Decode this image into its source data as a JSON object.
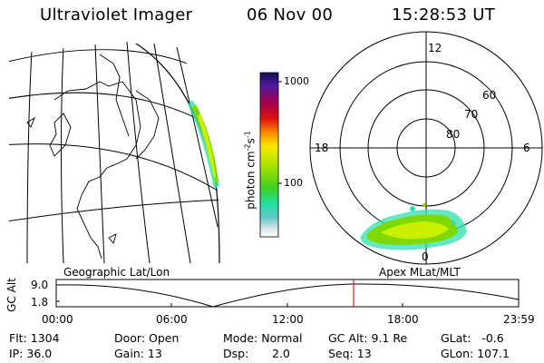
{
  "header": {
    "instrument": "Ultraviolet Imager",
    "date": "06 Nov 00",
    "time": "15:28:53 UT"
  },
  "colorbar": {
    "unit_label": "photon cm",
    "unit_exp1": "-2",
    "unit_s": "s",
    "unit_exp2": "-1",
    "ticks": [
      "1000",
      "100"
    ]
  },
  "polar_plot": {
    "mlt_labels": [
      "12",
      "18",
      "6",
      "0"
    ],
    "lat_labels": [
      "60",
      "70",
      "80"
    ]
  },
  "map_labels": {
    "geographic": "Geographic Lat/Lon",
    "apex": "Apex MLat/MLT"
  },
  "altitude_plot": {
    "ylabel": "GC Alt",
    "y_ticks": [
      "9.0",
      "1.8"
    ],
    "x_ticks": [
      "00:00",
      "06:00",
      "12:00",
      "18:00",
      "23:59"
    ],
    "current_time_marker": "15:28:53"
  },
  "status": {
    "flt": "Flt: 1304",
    "ip": "IP: 36.0",
    "door": "Door: Open",
    "gain": "Gain: 13",
    "mode": "Mode: Normal",
    "dsp_label": "Dsp:",
    "dsp_value": "2.0",
    "gc_alt": "GC Alt: 9.1 Re",
    "seq": "Seq: 13",
    "glat": "GLat:   -0.6",
    "glon": "GLon: 107.1"
  },
  "colors": {
    "aurora_bright": "#7fd800",
    "aurora_mid": "#c8f000",
    "aurora_edge": "#30e0b0",
    "marker": "#cc2222"
  }
}
